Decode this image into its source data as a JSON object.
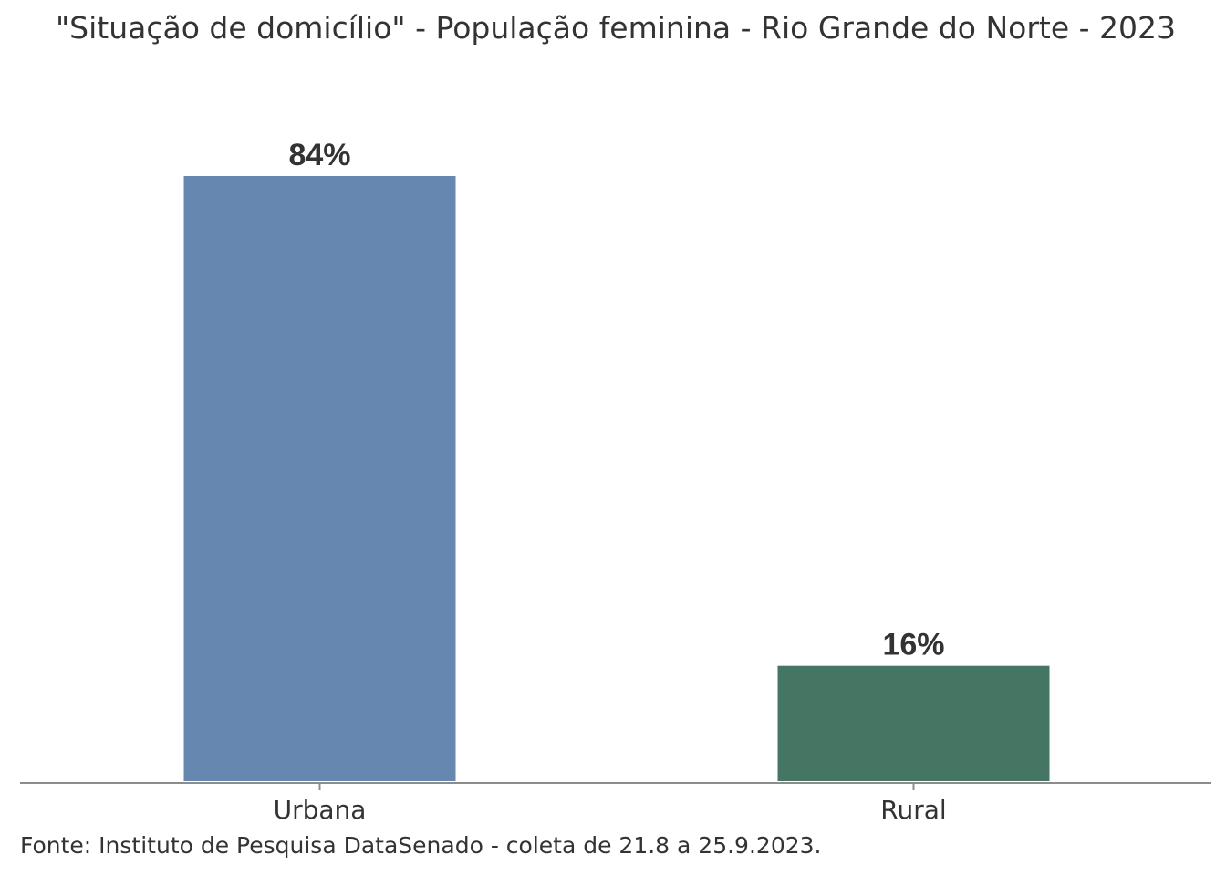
{
  "chart_data": {
    "type": "bar",
    "title": "\"Situação de domicílio\" - População feminina - Rio Grande do Norte - 2023",
    "categories": [
      "Urbana",
      "Rural"
    ],
    "values": [
      84,
      16
    ],
    "data_labels": [
      "84%",
      "16%"
    ],
    "colors": [
      "#6688b0",
      "#457563"
    ],
    "ylim": [
      0,
      84
    ],
    "grid": false,
    "legend": "none",
    "xlabel": "",
    "ylabel": ""
  },
  "source": "Fonte: Instituto de Pesquisa DataSenado - coleta de 21.8 a 25.9.2023."
}
